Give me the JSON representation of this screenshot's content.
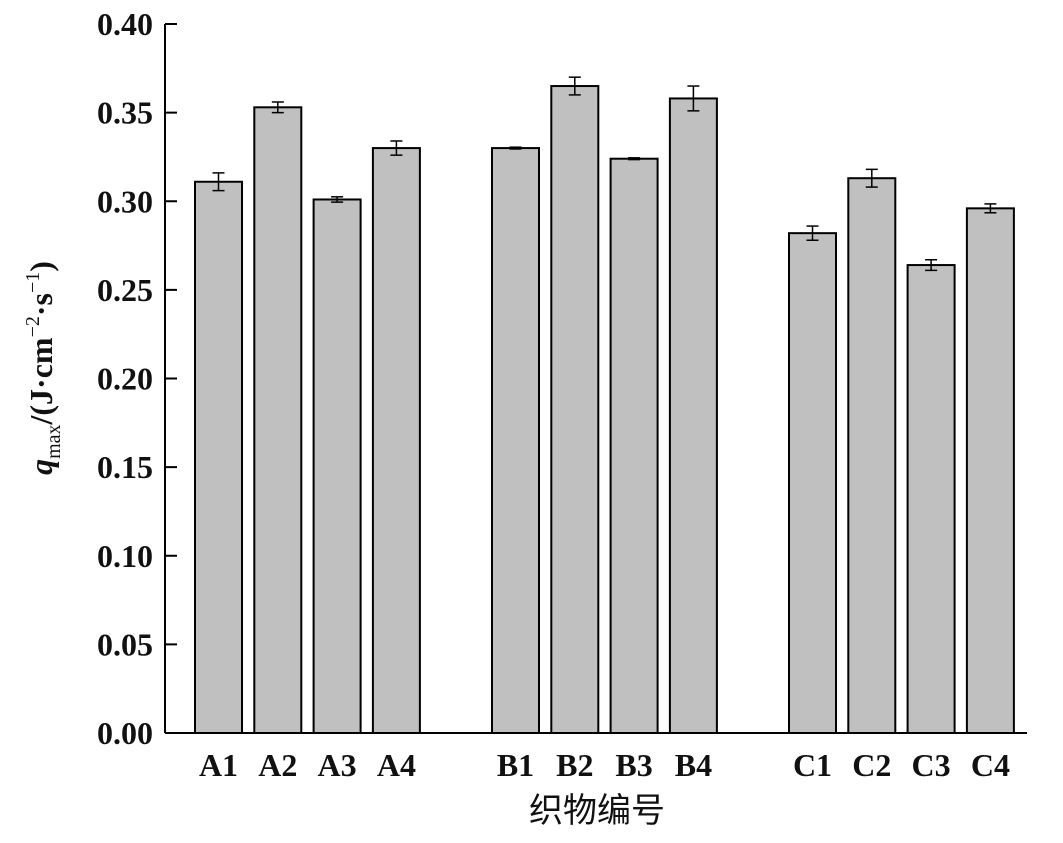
{
  "chart_data": {
    "type": "bar",
    "title": "",
    "xlabel": "织物编号",
    "ylabel": {
      "symbol": "q",
      "subscript": "max",
      "unit_prefix": "/(J·cm",
      "exp1": "−2",
      "unit_mid": "·s",
      "exp2": "−1",
      "unit_suffix": ")"
    },
    "ylim": [
      0,
      0.4
    ],
    "yticks": [
      "0.00",
      "0.05",
      "0.10",
      "0.15",
      "0.20",
      "0.25",
      "0.30",
      "0.35",
      "0.40"
    ],
    "grid": false,
    "groups": [
      {
        "categories": [
          "A1",
          "A2",
          "A3",
          "A4"
        ],
        "values": [
          0.311,
          0.353,
          0.301,
          0.33
        ],
        "errors": [
          0.005,
          0.003,
          0.0015,
          0.004
        ]
      },
      {
        "categories": [
          "B1",
          "B2",
          "B3",
          "B4"
        ],
        "values": [
          0.33,
          0.365,
          0.324,
          0.358
        ],
        "errors": [
          0.0005,
          0.005,
          0.0005,
          0.007
        ]
      },
      {
        "categories": [
          "C1",
          "C2",
          "C3",
          "C4"
        ],
        "values": [
          0.282,
          0.313,
          0.264,
          0.296
        ],
        "errors": [
          0.004,
          0.005,
          0.003,
          0.0025
        ]
      }
    ],
    "colors": {
      "bar_fill": "#c0c0c0",
      "bar_stroke": "#000000",
      "axis": "#000000"
    }
  }
}
